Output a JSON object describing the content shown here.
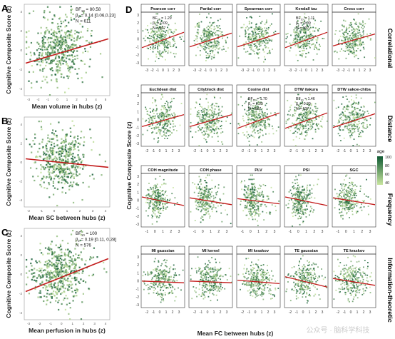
{
  "colors": {
    "line": "#c21a1a",
    "dot_dark": "#0f5a33",
    "dot_light": "#c9e6a0",
    "axis": "#222222",
    "strip": "#ffffff"
  },
  "left_panels": [
    {
      "letter": "A",
      "ylabel": "Cognitive Composite Score (z)",
      "xlabel": "Mean volume in hubs (z)",
      "stats": {
        "bf": "BF",
        "bf_sub": "10",
        "bf_val": " = 80.58",
        "beta": "β",
        "beta_sub": "z",
        "beta_val": "= 0.14 [0.06,0.23]",
        "n": "N = 611"
      },
      "xticks": [
        "-3",
        "-2",
        "-1",
        "0",
        "1",
        "2",
        "3",
        "4",
        "5"
      ],
      "yticks": [
        "4",
        "2",
        "0",
        "-2",
        "-4"
      ]
    },
    {
      "letter": "B",
      "ylabel": "Cognitive Composite Score (z)",
      "xlabel": "Mean SC between hubs (z)",
      "stats": null,
      "xticks": [
        "-2",
        "-1",
        "0",
        "1",
        "2",
        "3",
        "4"
      ],
      "yticks": [
        "4",
        "2",
        "0",
        "-2",
        "-4"
      ]
    },
    {
      "letter": "C",
      "ylabel": "Cognitive Composite Score (z)",
      "xlabel": "Mean perfusion in hubs (z)",
      "stats": {
        "bf": "BF",
        "bf_sub": "10",
        "bf_val": " = 100",
        "beta": "β",
        "beta_sub": "z",
        "beta_val": "= 0.19 [0.11, 0.28]",
        "n": "N = 576"
      },
      "xticks": [
        "-3",
        "-2",
        "-1",
        "0",
        "1",
        "2",
        "3",
        "4"
      ],
      "yticks": [
        "4",
        "2",
        "0",
        "-2",
        "-4"
      ]
    }
  ],
  "right": {
    "letter": "D",
    "ylabel": "Cognitive Composite Score (z)",
    "xlabel": "Mean FC between hubs (z)",
    "yticks": [
      "3",
      "2",
      "1",
      "0",
      "-1",
      "-2",
      "-3"
    ],
    "rows": [
      {
        "label": "Correlational",
        "xticks": [
          "-3",
          "-2",
          "-1",
          "0",
          "1",
          "2",
          "3"
        ],
        "panels": [
          {
            "title": "Pearson corr",
            "slope": 0.09,
            "stats": {
              "bf": "BF",
              "bf_sub": "10",
              "bf_val": " = 1.29",
              "beta": "β",
              "beta_sub": "z",
              "beta_val": "= 0.09",
              "n": "N = 607"
            }
          },
          {
            "title": "Partial corr",
            "slope": 0.08,
            "stats": null
          },
          {
            "title": "Spearman corr",
            "slope": 0.08,
            "stats": null
          },
          {
            "title": "Kendall tau",
            "slope": 0.09,
            "stats": {
              "bf": "BF",
              "bf_sub": "10",
              "bf_val": " = 1.11",
              "beta": "β",
              "beta_sub": "z",
              "beta_val": "= 0.09",
              "n": "N = 607"
            }
          },
          {
            "title": "Cross corr",
            "slope": 0.07,
            "stats": null
          }
        ]
      },
      {
        "label": "Distance",
        "xticks": [
          "-2",
          "-1",
          "0",
          "1",
          "2",
          "3"
        ],
        "panels": [
          {
            "title": "Euclidean dist",
            "slope": 0.07,
            "stats": null
          },
          {
            "title": "Cityblock dist",
            "slope": 0.07,
            "stats": null
          },
          {
            "title": "Cosine dist",
            "slope": 0.09,
            "stats": {
              "bf": "BF",
              "bf_sub": "10",
              "bf_val": " = 1.70",
              "beta": "β",
              "beta_sub": "z",
              "beta_val": "= 0.09",
              "n": "N = 607"
            }
          },
          {
            "title": "DTW itakura",
            "slope": 0.09,
            "stats": {
              "bf": "BF",
              "bf_sub": "10",
              "bf_val": " = 1.46",
              "beta": "β",
              "beta_sub": "z",
              "beta_val": "= 0.09",
              "n": "N = 607"
            }
          },
          {
            "title": "DTW sakoe-chiba",
            "slope": 0.08,
            "stats": null
          }
        ]
      },
      {
        "label": "Frequency",
        "xticks": [
          "-1",
          "0",
          "1",
          "2",
          "3"
        ],
        "panels": [
          {
            "title": "COH magnitude",
            "slope": -0.05,
            "stats": null
          },
          {
            "title": "COH phase",
            "slope": -0.04,
            "stats": null
          },
          {
            "title": "PLV",
            "slope": -0.03,
            "stats": null
          },
          {
            "title": "PSI",
            "slope": -0.05,
            "stats": null
          },
          {
            "title": "SGC",
            "slope": -0.04,
            "stats": null
          }
        ]
      },
      {
        "label": "Information-theoretic",
        "xticks": [
          "-2",
          "-1",
          "0",
          "1",
          "2",
          "3"
        ],
        "panels": [
          {
            "title": "MI gaussian",
            "slope": -0.01,
            "stats": null
          },
          {
            "title": "MI kernel",
            "slope": -0.01,
            "stats": null
          },
          {
            "title": "MI kraskov",
            "slope": -0.02,
            "stats": null
          },
          {
            "title": "TE gaussian",
            "slope": -0.06,
            "stats": null
          },
          {
            "title": "TE kraskov",
            "slope": -0.04,
            "stats": null
          }
        ]
      }
    ]
  },
  "legend": {
    "title": "age",
    "ticks": [
      "100",
      "80",
      "60",
      "40"
    ]
  },
  "watermark": "公众号 · 脑科学科技"
}
